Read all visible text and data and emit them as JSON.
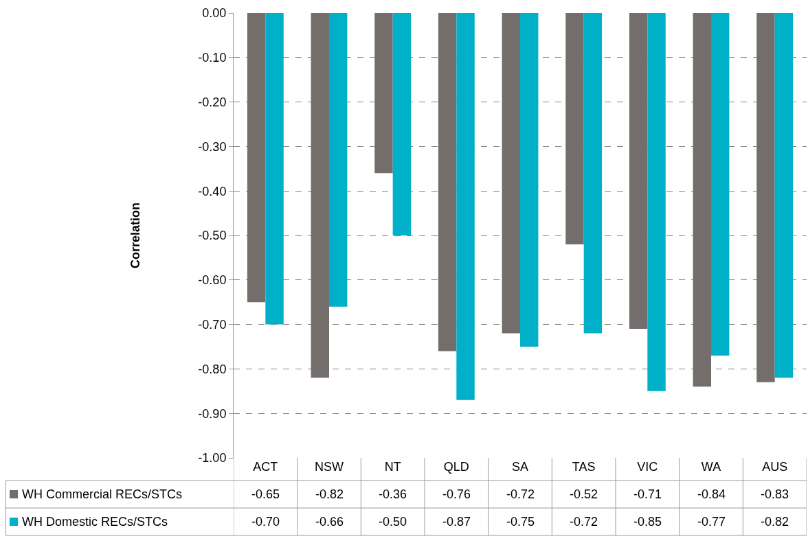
{
  "chart_data": {
    "type": "bar",
    "ylabel": "Correlation",
    "categories": [
      "ACT",
      "NSW",
      "NT",
      "QLD",
      "SA",
      "TAS",
      "VIC",
      "WA",
      "AUS"
    ],
    "series": [
      {
        "name": "WH Commercial RECs/STCs",
        "color": "#736d6c",
        "values": [
          -0.65,
          -0.82,
          -0.36,
          -0.76,
          -0.72,
          -0.52,
          -0.71,
          -0.84,
          -0.83
        ],
        "value_labels": [
          "-0.65",
          "-0.82",
          "-0.36",
          "-0.76",
          "-0.72",
          "-0.52",
          "-0.71",
          "-0.84",
          "-0.83"
        ]
      },
      {
        "name": "WH Domestic RECs/STCs",
        "color": "#00b0c8",
        "values": [
          -0.7,
          -0.66,
          -0.5,
          -0.87,
          -0.75,
          -0.72,
          -0.85,
          -0.77,
          -0.82
        ],
        "value_labels": [
          "-0.70",
          "-0.66",
          "-0.50",
          "-0.87",
          "-0.75",
          "-0.72",
          "-0.85",
          "-0.77",
          "-0.82"
        ]
      }
    ],
    "ylim": [
      -1.0,
      0.0
    ],
    "yticks": [
      {
        "value": 0,
        "label": "0.00"
      },
      {
        "value": -0.1,
        "label": "-0.10"
      },
      {
        "value": -0.2,
        "label": "-0.20"
      },
      {
        "value": -0.3,
        "label": "-0.30"
      },
      {
        "value": -0.4,
        "label": "-0.40"
      },
      {
        "value": -0.5,
        "label": "-0.50"
      },
      {
        "value": -0.6,
        "label": "-0.60"
      },
      {
        "value": -0.7,
        "label": "-0.70"
      },
      {
        "value": -0.8,
        "label": "-0.80"
      },
      {
        "value": -0.9,
        "label": "-0.90"
      },
      {
        "value": -1.0,
        "label": "-1.00"
      }
    ],
    "grid": "y",
    "legend": "bottom left"
  }
}
